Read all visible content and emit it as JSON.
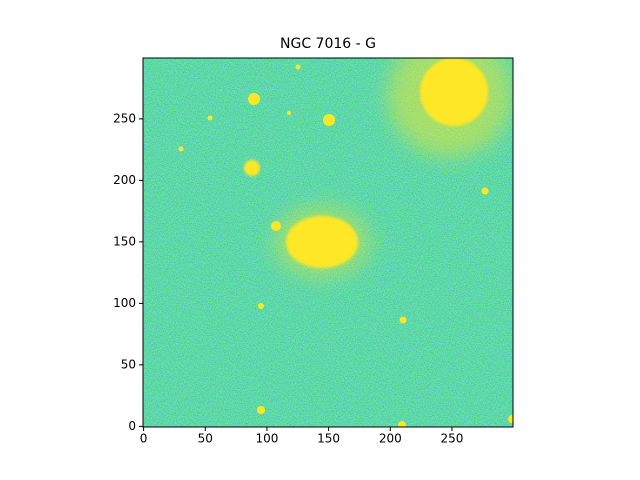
{
  "chart_data": {
    "type": "image",
    "title": "NGC 7016 - G",
    "xlim": [
      -0.5,
      299.5
    ],
    "ylim": [
      -0.5,
      299.5
    ],
    "xticks": [
      0,
      50,
      100,
      150,
      200,
      250
    ],
    "yticks": [
      0,
      50,
      100,
      150,
      200,
      250
    ]
  }
}
